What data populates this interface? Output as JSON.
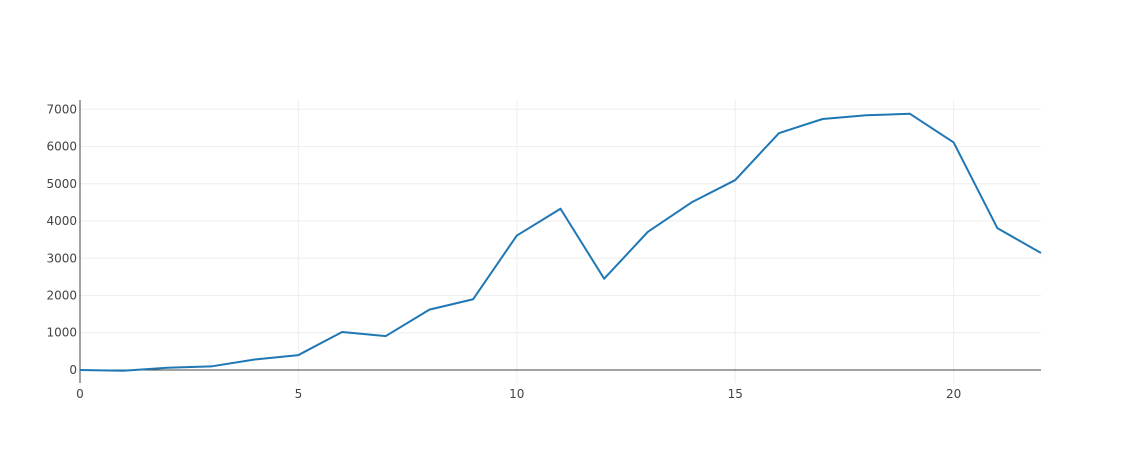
{
  "chart_data": {
    "type": "line",
    "title": "",
    "xlabel": "",
    "ylabel": "",
    "xlim": [
      0,
      22
    ],
    "ylim": [
      -350,
      7250
    ],
    "x_ticks": [
      0,
      5,
      10,
      15,
      20
    ],
    "y_ticks": [
      0,
      1000,
      2000,
      3000,
      4000,
      5000,
      6000,
      7000
    ],
    "x_minor_grid": [
      5,
      10,
      15,
      20
    ],
    "grid": true,
    "legend": "none",
    "colors": {
      "line": "#1f77b4",
      "grid": "#eeeeee",
      "axis": "#444444",
      "tick_text": "#444444"
    },
    "series": [
      {
        "x": [
          0,
          1,
          2,
          3,
          4,
          5,
          6,
          7,
          8,
          9,
          10,
          11,
          12,
          13,
          14,
          15,
          16,
          17,
          18,
          19,
          20,
          21,
          22
        ],
        "values": [
          0,
          -20,
          60,
          95,
          280,
          400,
          1020,
          910,
          1620,
          1900,
          3610,
          4330,
          2450,
          3710,
          4500,
          5100,
          6360,
          6740,
          6840,
          6880,
          6110,
          3810,
          3140
        ]
      }
    ]
  }
}
